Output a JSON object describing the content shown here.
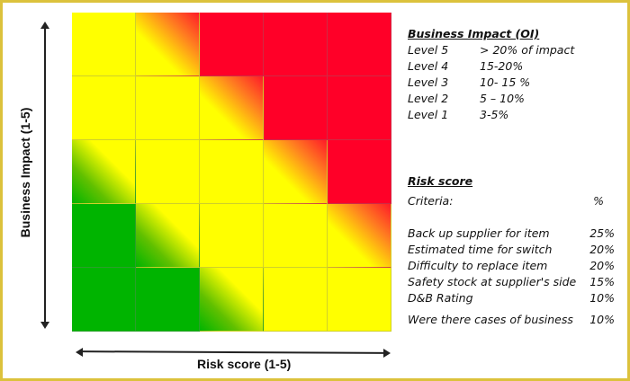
{
  "matrix": {
    "y_label": "Business Impact (1-5)",
    "x_label": "Risk score (1-5)",
    "colors": {
      "red": "#ff0028",
      "yellow": "#ffff00",
      "green": "#00b400",
      "border": "#dcc23c"
    },
    "rows": [
      [
        "yellow",
        "yellow-red",
        "red",
        "red",
        "red"
      ],
      [
        "yellow",
        "yellow",
        "yellow-red",
        "red",
        "red"
      ],
      [
        "green-yellow",
        "yellow",
        "yellow",
        "yellow-red",
        "red"
      ],
      [
        "green",
        "green-yellow",
        "yellow",
        "yellow",
        "yellow-red"
      ],
      [
        "green",
        "green",
        "green-yellow",
        "yellow",
        "yellow"
      ]
    ]
  },
  "business_impact": {
    "title": "Business Impact (OI)",
    "levels": [
      {
        "label": "Level 5",
        "value": "> 20% of  impact"
      },
      {
        "label": "Level 4",
        "value": "15-20%"
      },
      {
        "label": "Level 3",
        "value": "10- 15 %"
      },
      {
        "label": "Level 2",
        "value": "5 – 10%"
      },
      {
        "label": "Level 1",
        "value": "3-5%"
      }
    ]
  },
  "risk_score": {
    "title": "Risk score",
    "criteria_label": "Criteria:",
    "percent_label": "%",
    "criteria": [
      {
        "label": "Back up supplier for item",
        "value": "25%"
      },
      {
        "label": "Estimated time for switch",
        "value": "20%"
      },
      {
        "label": "Difficulty to replace item",
        "value": "20%"
      },
      {
        "label": "Safety stock at supplier's side",
        "value": "15%"
      },
      {
        "label": "D&B Rating",
        "value": "10%"
      },
      {
        "label": "Were there cases of business",
        "value": "10%"
      }
    ]
  }
}
